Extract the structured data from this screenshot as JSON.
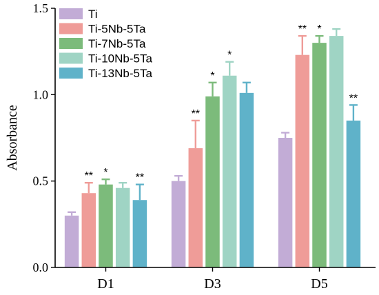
{
  "chart_data": {
    "type": "bar",
    "ylabel": "Absorbance",
    "xlabel": "",
    "ylim": [
      0,
      1.5
    ],
    "yticks": [
      "0.0",
      "0.5",
      "1.0",
      "1.5"
    ],
    "categories": [
      "D1",
      "D3",
      "D5"
    ],
    "legend_position": "top-left",
    "grid": false,
    "series": [
      {
        "name": "Ti",
        "color": "#c2acd6",
        "values": [
          0.3,
          0.5,
          0.75
        ],
        "errors": [
          0.02,
          0.03,
          0.03
        ],
        "significance": [
          "",
          "",
          ""
        ]
      },
      {
        "name": "Ti-5Nb-5Ta",
        "color": "#ef9c98",
        "values": [
          0.43,
          0.69,
          1.23
        ],
        "errors": [
          0.06,
          0.16,
          0.11
        ],
        "significance": [
          "**",
          "**",
          "**"
        ]
      },
      {
        "name": "Ti-7Nb-5Ta",
        "color": "#7cbb7b",
        "values": [
          0.48,
          0.99,
          1.3
        ],
        "errors": [
          0.03,
          0.08,
          0.04
        ],
        "significance": [
          "*",
          "*",
          "*"
        ]
      },
      {
        "name": "Ti-10Nb-5Ta",
        "color": "#9fd4c4",
        "values": [
          0.46,
          1.11,
          1.34
        ],
        "errors": [
          0.03,
          0.08,
          0.04
        ],
        "significance": [
          "",
          "*",
          ""
        ]
      },
      {
        "name": "Ti-13Nb-5Ta",
        "color": "#5fb2c9",
        "values": [
          0.39,
          1.01,
          0.85
        ],
        "errors": [
          0.09,
          0.06,
          0.09
        ],
        "significance": [
          "**",
          "",
          "**"
        ]
      }
    ]
  }
}
